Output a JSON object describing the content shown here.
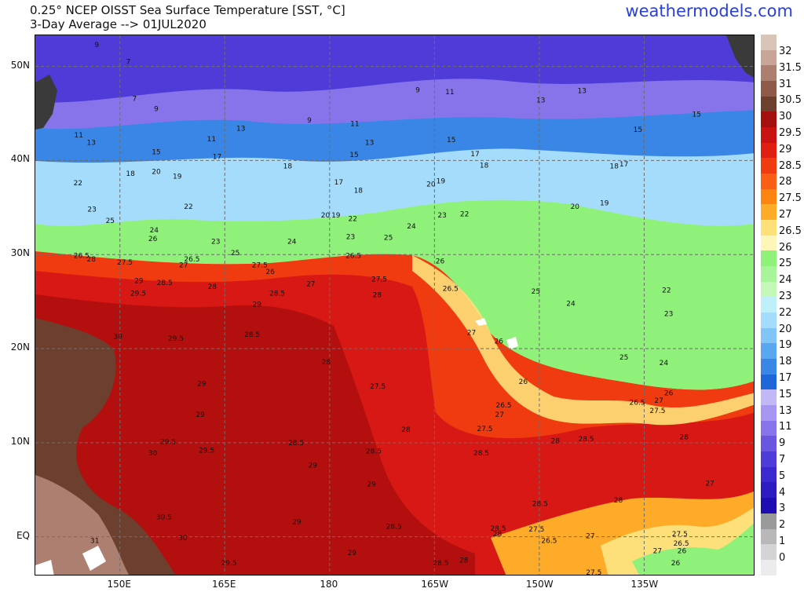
{
  "header": {
    "title_line1": "0.25° NCEP OISST Sea Surface Temperature [SST, °C]",
    "title_line2": "3-Day Average --> 01JUL2020",
    "brand": "weathermodels.com"
  },
  "axes": {
    "lon_labels": [
      "150E",
      "165E",
      "180",
      "165W",
      "150W",
      "135W"
    ],
    "lat_labels": [
      "50N",
      "40N",
      "30N",
      "20N",
      "10N",
      "EQ"
    ]
  },
  "colorbar": {
    "colors": [
      "#d9c4b8",
      "#c9a597",
      "#ad7f70",
      "#8f5a4a",
      "#6c3f2e",
      "#a40f0f",
      "#c91212",
      "#e01f12",
      "#f03a10",
      "#f85f14",
      "#fb8412",
      "#fdab29",
      "#fde07a",
      "#fdf6b8",
      "#8ff07a",
      "#a8f49a",
      "#c4f8b8",
      "#bff0fa",
      "#a6dcfb",
      "#80c4f8",
      "#5aa6f0",
      "#3a86e6",
      "#1f66da",
      "#c2b8f6",
      "#a696f2",
      "#8874ea",
      "#6a55e0",
      "#4f3cd8",
      "#3c28cf",
      "#2c1cc2",
      "#1e0db0",
      "#9a9a9a",
      "#b8b8b8",
      "#d4d4d4",
      "#ececec"
    ],
    "labels": [
      "32",
      "31.5",
      "31",
      "30.5",
      "30",
      "29.5",
      "29",
      "28.5",
      "28",
      "27.5",
      "27",
      "26.5",
      "26",
      "25",
      "24",
      "23",
      "22",
      "20",
      "19",
      "18",
      "17",
      "15",
      "13",
      "11",
      "9",
      "7",
      "5",
      "4",
      "3",
      "2",
      "1",
      "0"
    ]
  },
  "contour_labels": [
    {
      "t": "9",
      "lon": 146.7,
      "lat": 52.3
    },
    {
      "t": "7",
      "lon": 151.2,
      "lat": 50.5
    },
    {
      "t": "7",
      "lon": 152.1,
      "lat": 46.6
    },
    {
      "t": "9",
      "lon": 155.2,
      "lat": 45.5
    },
    {
      "t": "9",
      "lon": 177.1,
      "lat": 44.3
    },
    {
      "t": "11",
      "lon": 183.6,
      "lat": 43.9
    },
    {
      "t": "9",
      "lon": 192.6,
      "lat": 47.5
    },
    {
      "t": "11",
      "lon": 197.2,
      "lat": 47.3
    },
    {
      "t": "13",
      "lon": 210.2,
      "lat": 46.4
    },
    {
      "t": "13",
      "lon": 216.1,
      "lat": 47.4
    },
    {
      "t": "15",
      "lon": 224.1,
      "lat": 43.3
    },
    {
      "t": "15",
      "lon": 232.5,
      "lat": 44.9
    },
    {
      "t": "11",
      "lon": 144.1,
      "lat": 42.7
    },
    {
      "t": "13",
      "lon": 145.9,
      "lat": 41.9
    },
    {
      "t": "11",
      "lon": 163.1,
      "lat": 42.3
    },
    {
      "t": "13",
      "lon": 167.3,
      "lat": 43.4
    },
    {
      "t": "15",
      "lon": 155.2,
      "lat": 40.9
    },
    {
      "t": "17",
      "lon": 163.9,
      "lat": 40.4
    },
    {
      "t": "15",
      "lon": 183.5,
      "lat": 40.6
    },
    {
      "t": "13",
      "lon": 185.7,
      "lat": 41.9
    },
    {
      "t": "15",
      "lon": 197.4,
      "lat": 42.2
    },
    {
      "t": "17",
      "lon": 200.8,
      "lat": 40.7
    },
    {
      "t": "18",
      "lon": 202.1,
      "lat": 39.5
    },
    {
      "t": "18",
      "lon": 220.7,
      "lat": 39.4
    },
    {
      "t": "17",
      "lon": 222.1,
      "lat": 39.6
    },
    {
      "t": "18",
      "lon": 151.5,
      "lat": 38.6
    },
    {
      "t": "20",
      "lon": 155.2,
      "lat": 38.8
    },
    {
      "t": "19",
      "lon": 158.2,
      "lat": 38.3
    },
    {
      "t": "18",
      "lon": 174.0,
      "lat": 39.4
    },
    {
      "t": "17",
      "lon": 181.3,
      "lat": 37.7
    },
    {
      "t": "18",
      "lon": 184.1,
      "lat": 36.8
    },
    {
      "t": "20",
      "lon": 194.5,
      "lat": 37.5
    },
    {
      "t": "19",
      "lon": 195.9,
      "lat": 37.8
    },
    {
      "t": "19",
      "lon": 219.3,
      "lat": 35.5
    },
    {
      "t": "20",
      "lon": 215.1,
      "lat": 35.1
    },
    {
      "t": "22",
      "lon": 144.0,
      "lat": 37.6
    },
    {
      "t": "22",
      "lon": 159.8,
      "lat": 35.1
    },
    {
      "t": "20",
      "lon": 179.4,
      "lat": 34.2
    },
    {
      "t": "19",
      "lon": 180.9,
      "lat": 34.2
    },
    {
      "t": "22",
      "lon": 183.3,
      "lat": 33.8
    },
    {
      "t": "22",
      "lon": 199.3,
      "lat": 34.3
    },
    {
      "t": "23",
      "lon": 196.1,
      "lat": 34.2
    },
    {
      "t": "23",
      "lon": 146.0,
      "lat": 34.8
    },
    {
      "t": "25",
      "lon": 148.6,
      "lat": 33.6
    },
    {
      "t": "24",
      "lon": 154.9,
      "lat": 32.6
    },
    {
      "t": "26",
      "lon": 154.7,
      "lat": 31.7
    },
    {
      "t": "23",
      "lon": 163.7,
      "lat": 31.4
    },
    {
      "t": "25",
      "lon": 166.5,
      "lat": 30.2
    },
    {
      "t": "24",
      "lon": 174.6,
      "lat": 31.4
    },
    {
      "t": "23",
      "lon": 183.0,
      "lat": 31.9
    },
    {
      "t": "25",
      "lon": 188.4,
      "lat": 31.8
    },
    {
      "t": "24",
      "lon": 191.7,
      "lat": 33.0
    },
    {
      "t": "26.5",
      "lon": 144.5,
      "lat": 29.9
    },
    {
      "t": "28",
      "lon": 145.9,
      "lat": 29.5
    },
    {
      "t": "27.5",
      "lon": 150.7,
      "lat": 29.2
    },
    {
      "t": "27",
      "lon": 159.1,
      "lat": 28.9
    },
    {
      "t": "26.5",
      "lon": 160.3,
      "lat": 29.5
    },
    {
      "t": "27.5",
      "lon": 170.0,
      "lat": 28.9
    },
    {
      "t": "26",
      "lon": 171.5,
      "lat": 28.2
    },
    {
      "t": "26.5",
      "lon": 183.4,
      "lat": 29.9
    },
    {
      "t": "26",
      "lon": 195.8,
      "lat": 29.3
    },
    {
      "t": "29",
      "lon": 152.7,
      "lat": 27.2
    },
    {
      "t": "28.5",
      "lon": 156.4,
      "lat": 27.0
    },
    {
      "t": "29.5",
      "lon": 152.6,
      "lat": 25.9
    },
    {
      "t": "28",
      "lon": 163.2,
      "lat": 26.6
    },
    {
      "t": "28.5",
      "lon": 172.5,
      "lat": 25.9
    },
    {
      "t": "27",
      "lon": 177.3,
      "lat": 26.9
    },
    {
      "t": "27.5",
      "lon": 187.1,
      "lat": 27.4
    },
    {
      "t": "28",
      "lon": 186.8,
      "lat": 25.7
    },
    {
      "t": "26.5",
      "lon": 197.3,
      "lat": 26.4
    },
    {
      "t": "25",
      "lon": 209.5,
      "lat": 26.1
    },
    {
      "t": "29",
      "lon": 169.6,
      "lat": 24.7
    },
    {
      "t": "24",
      "lon": 214.5,
      "lat": 24.8
    },
    {
      "t": "22",
      "lon": 228.2,
      "lat": 26.2
    },
    {
      "t": "23",
      "lon": 228.5,
      "lat": 23.7
    },
    {
      "t": "30",
      "lon": 149.7,
      "lat": 21.3
    },
    {
      "t": "29.5",
      "lon": 158.0,
      "lat": 21.1
    },
    {
      "t": "28.5",
      "lon": 168.9,
      "lat": 21.5
    },
    {
      "t": "27",
      "lon": 200.3,
      "lat": 21.7
    },
    {
      "t": "26",
      "lon": 204.2,
      "lat": 20.8
    },
    {
      "t": "28",
      "lon": 179.5,
      "lat": 18.6
    },
    {
      "t": "25",
      "lon": 222.1,
      "lat": 19.1
    },
    {
      "t": "24",
      "lon": 227.8,
      "lat": 18.5
    },
    {
      "t": "29",
      "lon": 161.7,
      "lat": 16.3
    },
    {
      "t": "27.5",
      "lon": 186.9,
      "lat": 16.0
    },
    {
      "t": "26",
      "lon": 207.7,
      "lat": 16.5
    },
    {
      "t": "29",
      "lon": 161.5,
      "lat": 13.0
    },
    {
      "t": "26.5",
      "lon": 204.9,
      "lat": 14.0
    },
    {
      "t": "27",
      "lon": 204.3,
      "lat": 13.0
    },
    {
      "t": "26.5",
      "lon": 224.0,
      "lat": 14.3
    },
    {
      "t": "27",
      "lon": 227.1,
      "lat": 14.5
    },
    {
      "t": "26",
      "lon": 228.5,
      "lat": 15.3
    },
    {
      "t": "27.5",
      "lon": 226.9,
      "lat": 13.4
    },
    {
      "t": "28",
      "lon": 190.9,
      "lat": 11.4
    },
    {
      "t": "27.5",
      "lon": 202.2,
      "lat": 11.5
    },
    {
      "t": "29.5",
      "lon": 156.9,
      "lat": 10.1
    },
    {
      "t": "28.5",
      "lon": 175.2,
      "lat": 10.0
    },
    {
      "t": "28",
      "lon": 212.3,
      "lat": 10.2
    },
    {
      "t": "28.5",
      "lon": 216.7,
      "lat": 10.4
    },
    {
      "t": "28",
      "lon": 230.7,
      "lat": 10.6
    },
    {
      "t": "30",
      "lon": 154.7,
      "lat": 8.9
    },
    {
      "t": "29.5",
      "lon": 162.4,
      "lat": 9.2
    },
    {
      "t": "28.5",
      "lon": 186.3,
      "lat": 9.1
    },
    {
      "t": "28.5",
      "lon": 201.7,
      "lat": 8.9
    },
    {
      "t": "29",
      "lon": 177.6,
      "lat": 7.6
    },
    {
      "t": "29",
      "lon": 186.0,
      "lat": 5.6
    },
    {
      "t": "27",
      "lon": 234.4,
      "lat": 5.7
    },
    {
      "t": "28",
      "lon": 221.3,
      "lat": 3.9
    },
    {
      "t": "28.5",
      "lon": 210.1,
      "lat": 3.5
    },
    {
      "t": "30.5",
      "lon": 156.3,
      "lat": 2.1
    },
    {
      "t": "29",
      "lon": 175.3,
      "lat": 1.6
    },
    {
      "t": "28.5",
      "lon": 189.2,
      "lat": 1.1
    },
    {
      "t": "28.5",
      "lon": 204.1,
      "lat": 0.9
    },
    {
      "t": "28",
      "lon": 204.0,
      "lat": 0.3
    },
    {
      "t": "27.5",
      "lon": 209.6,
      "lat": 0.8
    },
    {
      "t": "26.5",
      "lon": 211.4,
      "lat": -0.4
    },
    {
      "t": "27",
      "lon": 217.3,
      "lat": 0.1
    },
    {
      "t": "27.5",
      "lon": 230.1,
      "lat": 0.3
    },
    {
      "t": "26.5",
      "lon": 230.3,
      "lat": -0.7
    },
    {
      "t": "31",
      "lon": 146.4,
      "lat": -0.4
    },
    {
      "t": "30",
      "lon": 159.0,
      "lat": -0.1
    },
    {
      "t": "29",
      "lon": 183.2,
      "lat": -1.7
    },
    {
      "t": "28",
      "lon": 199.2,
      "lat": -2.5
    },
    {
      "t": "28.5",
      "lon": 195.9,
      "lat": -2.8
    },
    {
      "t": "29.5",
      "lon": 165.6,
      "lat": -2.8
    },
    {
      "t": "27",
      "lon": 226.9,
      "lat": -1.5
    },
    {
      "t": "26",
      "lon": 230.4,
      "lat": -1.5
    },
    {
      "t": "26",
      "lon": 229.5,
      "lat": -2.8
    },
    {
      "t": "27.5",
      "lon": 217.8,
      "lat": -3.8
    }
  ]
}
